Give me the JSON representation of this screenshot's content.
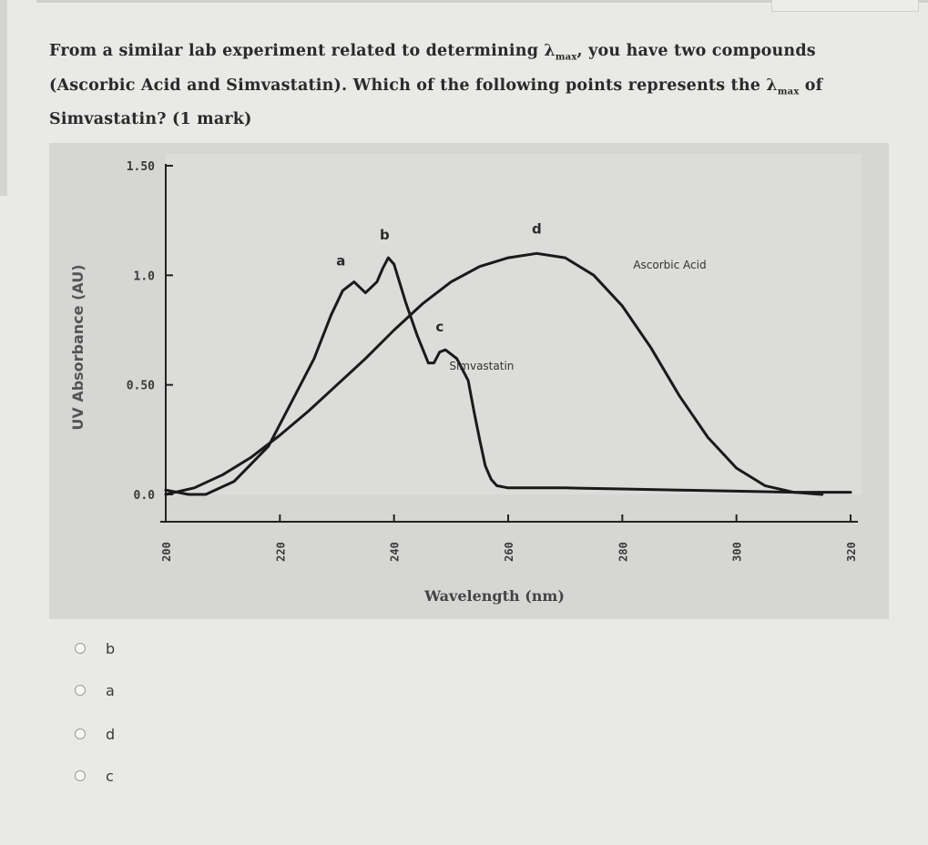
{
  "question": {
    "part1": "From a similar lab experiment related to determining ",
    "lambda": "λ",
    "sub_max": "max",
    "part2": ", you have two compounds (Ascorbic Acid and Simvastatin). Which of the following points represents the ",
    "part3": " of Simvastatin? (1 mark)"
  },
  "chart_data": {
    "type": "line",
    "xlabel": "Wavelength (nm)",
    "ylabel": "UV Absorbance (AU)",
    "x_ticks": [
      "200",
      "220",
      "240",
      "260",
      "280",
      "300",
      "320"
    ],
    "y_ticks": [
      "0.0",
      "0.50",
      "1.0",
      "1.50"
    ],
    "xlim": [
      200,
      320
    ],
    "ylim": [
      0,
      1.5
    ],
    "series": [
      {
        "name": "Simvastatin",
        "x": [
          200,
          204,
          207,
          212,
          218,
          222,
          226,
          229,
          231,
          233,
          235,
          237,
          238,
          239,
          240,
          242,
          244,
          246,
          247,
          248,
          249,
          251,
          253,
          254,
          255,
          256,
          257,
          258,
          260,
          263,
          270,
          280,
          290,
          300,
          310,
          320
        ],
        "y": [
          0.02,
          0.0,
          0.0,
          0.06,
          0.22,
          0.42,
          0.62,
          0.82,
          0.93,
          0.97,
          0.92,
          0.97,
          1.03,
          1.08,
          1.05,
          0.88,
          0.73,
          0.6,
          0.6,
          0.65,
          0.66,
          0.62,
          0.52,
          0.38,
          0.25,
          0.13,
          0.07,
          0.04,
          0.03,
          0.03,
          0.03,
          0.025,
          0.02,
          0.015,
          0.01,
          0.01
        ]
      },
      {
        "name": "Ascorbic Acid",
        "x": [
          200,
          205,
          210,
          215,
          220,
          225,
          230,
          235,
          240,
          245,
          250,
          255,
          260,
          265,
          270,
          275,
          280,
          285,
          290,
          295,
          300,
          305,
          310,
          315
        ],
        "y": [
          0.0,
          0.03,
          0.09,
          0.17,
          0.27,
          0.38,
          0.5,
          0.62,
          0.75,
          0.87,
          0.97,
          1.04,
          1.08,
          1.1,
          1.08,
          1.0,
          0.86,
          0.67,
          0.45,
          0.26,
          0.12,
          0.04,
          0.01,
          0.0
        ]
      }
    ],
    "points": [
      {
        "label": "a",
        "x": 231,
        "y": 0.97
      },
      {
        "label": "b",
        "x": 239,
        "y": 1.08
      },
      {
        "label": "c",
        "x": 248,
        "y": 0.66
      },
      {
        "label": "d",
        "x": 265,
        "y": 1.1
      }
    ],
    "annotations": [
      "Ascorbic Acid",
      "Simvastatin"
    ],
    "grid": false
  },
  "options": [
    {
      "label": "b"
    },
    {
      "label": "a"
    },
    {
      "label": "d"
    },
    {
      "label": "c"
    }
  ]
}
